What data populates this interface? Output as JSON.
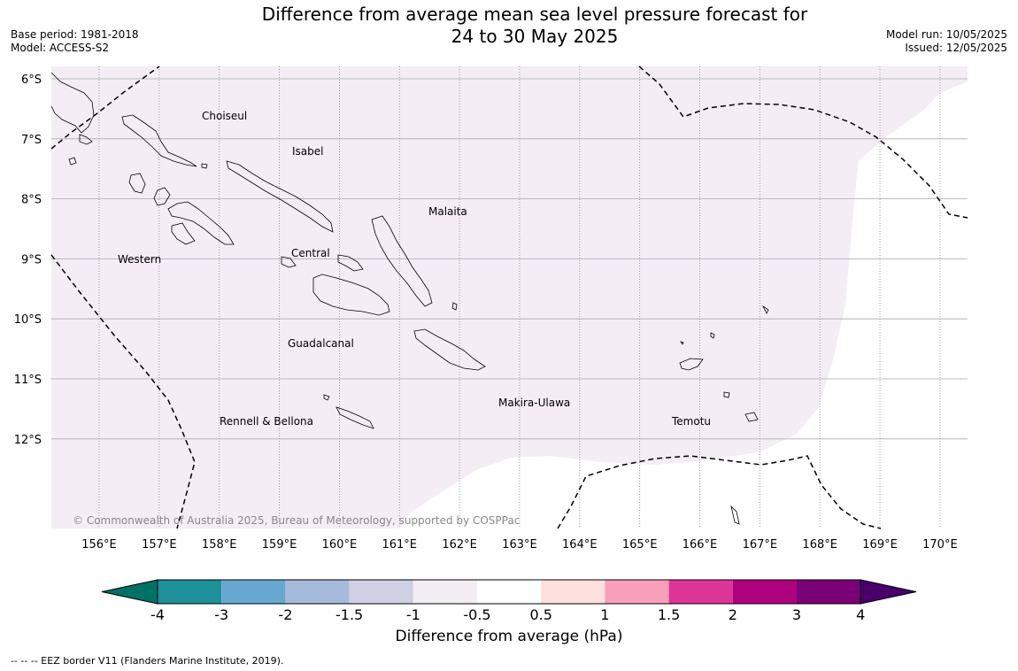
{
  "title": {
    "line1": "Difference from average mean sea level pressure forecast for",
    "line2": "24 to 30 May 2025"
  },
  "meta_left": {
    "base_period": "Base period: 1981-2018",
    "model": "Model: ACCESS-S2"
  },
  "meta_right": {
    "model_run": "Model run: 10/05/2025",
    "issued": "Issued: 12/05/2025"
  },
  "map": {
    "lat_labels": [
      "6°S",
      "7°S",
      "8°S",
      "9°S",
      "10°S",
      "11°S",
      "12°S"
    ],
    "lon_labels": [
      "156°E",
      "157°E",
      "158°E",
      "159°E",
      "160°E",
      "161°E",
      "162°E",
      "163°E",
      "164°E",
      "165°E",
      "166°E",
      "167°E",
      "168°E",
      "169°E",
      "170°E"
    ],
    "lat_values": [
      -6,
      -7,
      -8,
      -9,
      -10,
      -11,
      -12
    ],
    "lon_values": [
      156,
      157,
      158,
      159,
      160,
      161,
      162,
      163,
      164,
      165,
      166,
      167,
      168,
      169,
      170
    ],
    "region_labels": {
      "choiseul": "Choiseul",
      "isabel": "Isabel",
      "malaita": "Malaita",
      "western": "Western",
      "central": "Central",
      "guadalcanal": "Guadalcanal",
      "makira": "Makira-Ulawa",
      "rennell": "Rennell & Bellona",
      "temotu": "Temotu"
    },
    "copyright": "© Commonwealth of Australia 2025, Bureau of Meteorology, supported by COSPPac",
    "shading_color": "#f4edf6",
    "shading_category": "-1 to -0.5 hPa"
  },
  "colorbar": {
    "title": "Difference from average (hPa)",
    "tick_labels": [
      "-4",
      "-3",
      "-2",
      "-1.5",
      "-1",
      "-0.5",
      "0.5",
      "1",
      "1.5",
      "2",
      "3",
      "4"
    ],
    "colors": [
      "#007167",
      "#1e9099",
      "#67a8d1",
      "#a6bbdb",
      "#cfd0e4",
      "#f4edf6",
      "#ffffff",
      "#fde0dd",
      "#f89fb9",
      "#dd3497",
      "#ae017e",
      "#7a0177",
      "#49006a"
    ]
  },
  "footnote": "--  --  -- EEZ border V11 (Flanders Marine Institute, 2019)."
}
